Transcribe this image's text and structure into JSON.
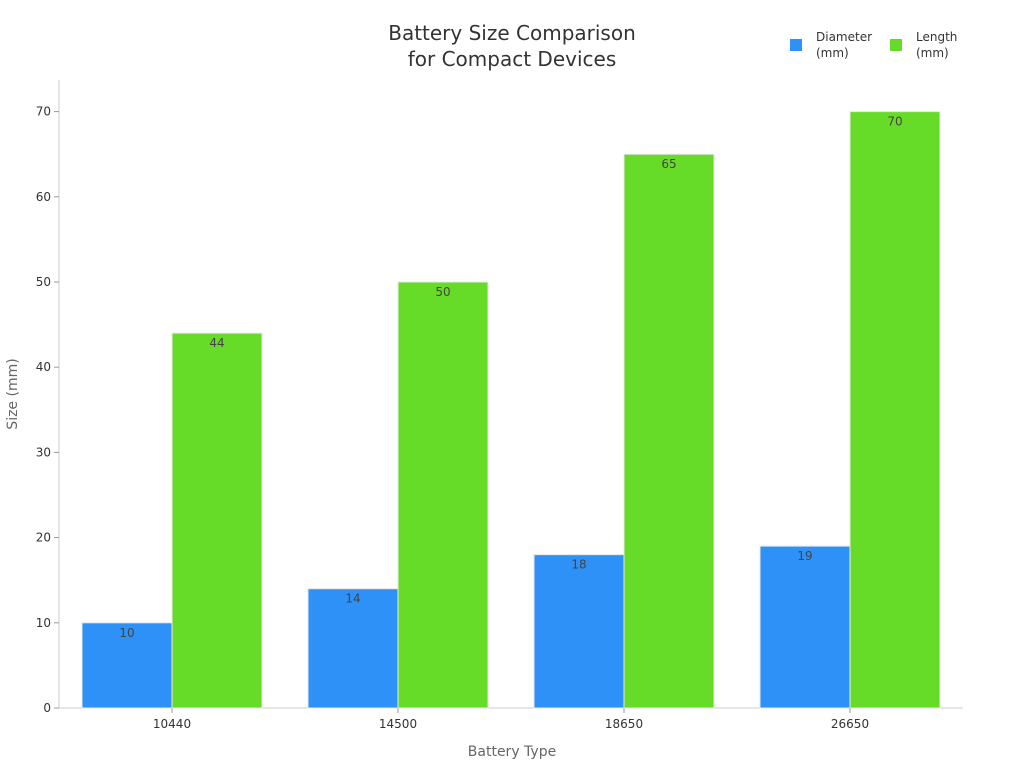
{
  "chart_data": {
    "type": "bar",
    "title_lines": [
      "Battery Size Comparison",
      "for Compact Devices"
    ],
    "xlabel": "Battery Type",
    "ylabel": "Size (mm)",
    "categories": [
      "10440",
      "14500",
      "18650",
      "26650"
    ],
    "series": [
      {
        "name_lines": [
          "Diameter",
          "(mm)"
        ],
        "color": "#2e91f7",
        "values": [
          10,
          14,
          18,
          19
        ]
      },
      {
        "name_lines": [
          "Length",
          "(mm)"
        ],
        "color": "#66dc28",
        "values": [
          44,
          50,
          65,
          70
        ]
      }
    ],
    "ylim": [
      0,
      73
    ],
    "yticks": [
      0,
      10,
      20,
      30,
      40,
      50,
      60,
      70
    ],
    "grid": false,
    "legend_position": "top-right",
    "show_data_labels": true
  }
}
